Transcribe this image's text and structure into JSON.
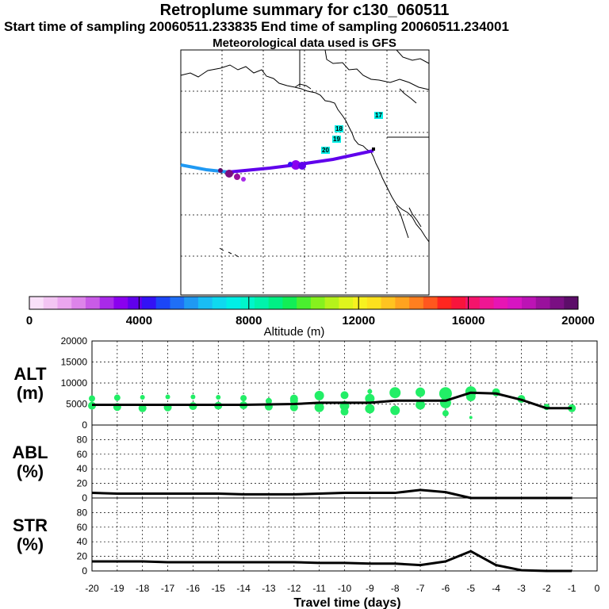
{
  "header": {
    "title": "Retroplume summary for c130_060511",
    "sampling": "Start time of sampling 20060511.233835     End time of sampling 20060511.234001",
    "met": "Meteorological data used is GFS"
  },
  "colorbar": {
    "xlabel": "Altitude (m)",
    "min": 0,
    "max": 20000,
    "ticks": [
      "0",
      "4000",
      "8000",
      "12000",
      "16000",
      "20000"
    ],
    "colors": [
      "#f9e0f9",
      "#f3c5f3",
      "#eba6ef",
      "#dd84ea",
      "#c95be7",
      "#a92ae9",
      "#8a00ee",
      "#6000ec",
      "#3312f5",
      "#1b46f7",
      "#1f6ff6",
      "#1f99f3",
      "#19bdf4",
      "#0fd9ef",
      "#00efe6",
      "#00f5cb",
      "#00f3ab",
      "#00f085",
      "#12ee56",
      "#4aef2f",
      "#86f11e",
      "#b6f21b",
      "#dff51d",
      "#f7f120",
      "#fde11e",
      "#ffc320",
      "#ffa31f",
      "#ff7f1f",
      "#ff571e",
      "#ff261f",
      "#f8143c",
      "#f4146b",
      "#ef1693",
      "#e715b4",
      "#d715c2",
      "#bc13b5",
      "#9a119c",
      "#7a0f83",
      "#5c0d69"
    ]
  },
  "map": {
    "trajectory_labels": [
      "17",
      "18",
      "19",
      "20"
    ]
  },
  "chart_data": [
    {
      "type": "line",
      "name": "ALT",
      "ylabel": "ALT (m)",
      "ylabel_lines": [
        "ALT",
        "(m)"
      ],
      "ylim": [
        0,
        20000
      ],
      "yticks": [
        "20000",
        "15000",
        "10000",
        "5000",
        "0"
      ],
      "x": [
        -20,
        -19,
        -18,
        -17,
        -16,
        -15,
        -14,
        -13,
        -12,
        -11,
        -10,
        -9,
        -8,
        -7,
        -6,
        -5,
        -4,
        -3,
        -2,
        -1
      ],
      "values": [
        4800,
        4800,
        4800,
        4800,
        4800,
        4800,
        4800,
        4900,
        5000,
        5300,
        5300,
        5300,
        5800,
        5800,
        5800,
        7700,
        7500,
        6000,
        4000,
        4000
      ],
      "scatter": [
        [
          -20,
          4600,
          5
        ],
        [
          -20,
          6300,
          4
        ],
        [
          -19,
          4300,
          5
        ],
        [
          -19,
          6500,
          4
        ],
        [
          -18,
          4000,
          5
        ],
        [
          -18,
          6600,
          3
        ],
        [
          -17,
          4200,
          5
        ],
        [
          -17,
          6700,
          3
        ],
        [
          -16,
          4500,
          5
        ],
        [
          -16,
          6700,
          3
        ],
        [
          -15,
          4600,
          5
        ],
        [
          -15,
          6600,
          3
        ],
        [
          -14,
          4700,
          5
        ],
        [
          -14,
          6400,
          4
        ],
        [
          -13,
          4400,
          5
        ],
        [
          -13,
          5700,
          4
        ],
        [
          -12,
          4200,
          5
        ],
        [
          -12,
          5800,
          5
        ],
        [
          -12,
          6300,
          5
        ],
        [
          -11,
          4200,
          6
        ],
        [
          -11,
          7000,
          6
        ],
        [
          -10,
          3200,
          5
        ],
        [
          -10,
          4600,
          6
        ],
        [
          -10,
          7100,
          5
        ],
        [
          -9,
          3900,
          6
        ],
        [
          -9,
          6300,
          6
        ],
        [
          -9,
          8000,
          3
        ],
        [
          -8,
          3500,
          6
        ],
        [
          -8,
          7700,
          7
        ],
        [
          -7,
          4800,
          6
        ],
        [
          -7,
          7800,
          6
        ],
        [
          -6,
          2800,
          4
        ],
        [
          -6,
          5300,
          7
        ],
        [
          -6,
          7500,
          8
        ],
        [
          -5,
          1800,
          2
        ],
        [
          -5,
          6800,
          6
        ],
        [
          -5,
          7900,
          7
        ],
        [
          -4,
          7800,
          5
        ],
        [
          -3,
          6200,
          5
        ],
        [
          -2,
          4300,
          4
        ],
        [
          -1,
          4000,
          5
        ]
      ]
    },
    {
      "type": "line",
      "name": "ABL",
      "ylabel": "ABL (%)",
      "ylabel_lines": [
        "ABL",
        "(%)"
      ],
      "ylim": [
        0,
        100
      ],
      "yticks": [
        "80",
        "60",
        "40",
        "20",
        "0"
      ],
      "x": [
        -20,
        -19,
        -18,
        -17,
        -16,
        -15,
        -14,
        -13,
        -12,
        -11,
        -10,
        -9,
        -8,
        -7,
        -6,
        -5,
        -4,
        -3,
        -2,
        -1
      ],
      "values": [
        7,
        6,
        6,
        6,
        6,
        6,
        5,
        5,
        5,
        6,
        7,
        7,
        7,
        11,
        8,
        0,
        0,
        0,
        0,
        0
      ]
    },
    {
      "type": "line",
      "name": "STR",
      "ylabel": "STR (%)",
      "ylabel_lines": [
        "STR",
        "(%)"
      ],
      "ylim": [
        0,
        100
      ],
      "yticks": [
        "80",
        "60",
        "40",
        "20",
        "0"
      ],
      "x": [
        -20,
        -19,
        -18,
        -17,
        -16,
        -15,
        -14,
        -13,
        -12,
        -11,
        -10,
        -9,
        -8,
        -7,
        -6,
        -5,
        -4,
        -3,
        -2,
        -1
      ],
      "values": [
        13,
        13,
        13,
        12,
        12,
        12,
        12,
        12,
        12,
        11,
        11,
        10,
        10,
        8,
        13,
        27,
        8,
        1,
        0,
        0
      ]
    }
  ],
  "xaxis": {
    "xlabel": "Travel time (days)",
    "xlim": [
      -20,
      0
    ],
    "ticks": [
      "-20",
      "-19",
      "-18",
      "-17",
      "-16",
      "-15",
      "-14",
      "-13",
      "-12",
      "-11",
      "-10",
      "-9",
      "-8",
      "-7",
      "-6",
      "-5",
      "-4",
      "-3",
      "-2",
      "-1",
      "0"
    ]
  },
  "colors": {
    "series_line": "#000000",
    "scatter_dot": "#22ee66",
    "grid": "#000000"
  }
}
